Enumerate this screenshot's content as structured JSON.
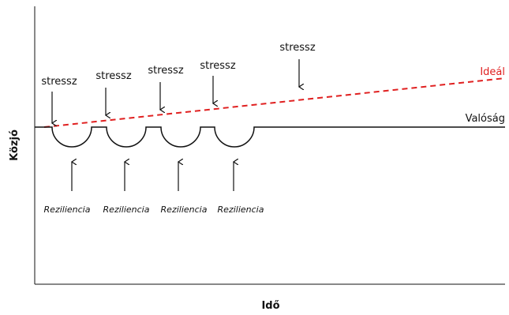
{
  "axes": {
    "x_title": "Idő",
    "y_title": "Közjó"
  },
  "lines": {
    "ideal": {
      "label": "Ideál",
      "color": "#e02020"
    },
    "reality": {
      "label": "Valóság",
      "color": "#111111"
    }
  },
  "stress_labels": [
    "stressz",
    "stressz",
    "stressz",
    "stressz",
    "stressz"
  ],
  "resilience_labels": [
    "Reziliencia",
    "Reziliencia",
    "Reziliencia",
    "Reziliencia"
  ]
}
